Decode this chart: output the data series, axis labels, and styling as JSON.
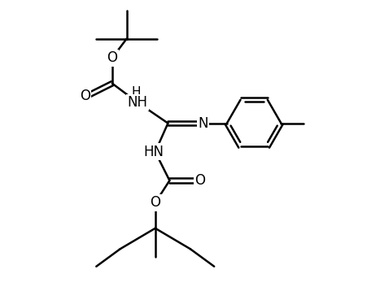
{
  "background_color": "#ffffff",
  "line_color": "#000000",
  "line_width": 1.8,
  "figsize": [
    4.52,
    3.58
  ],
  "dpi": 100,
  "xlim": [
    0,
    10
  ],
  "ylim": [
    0,
    9
  ],
  "font_size": 12
}
